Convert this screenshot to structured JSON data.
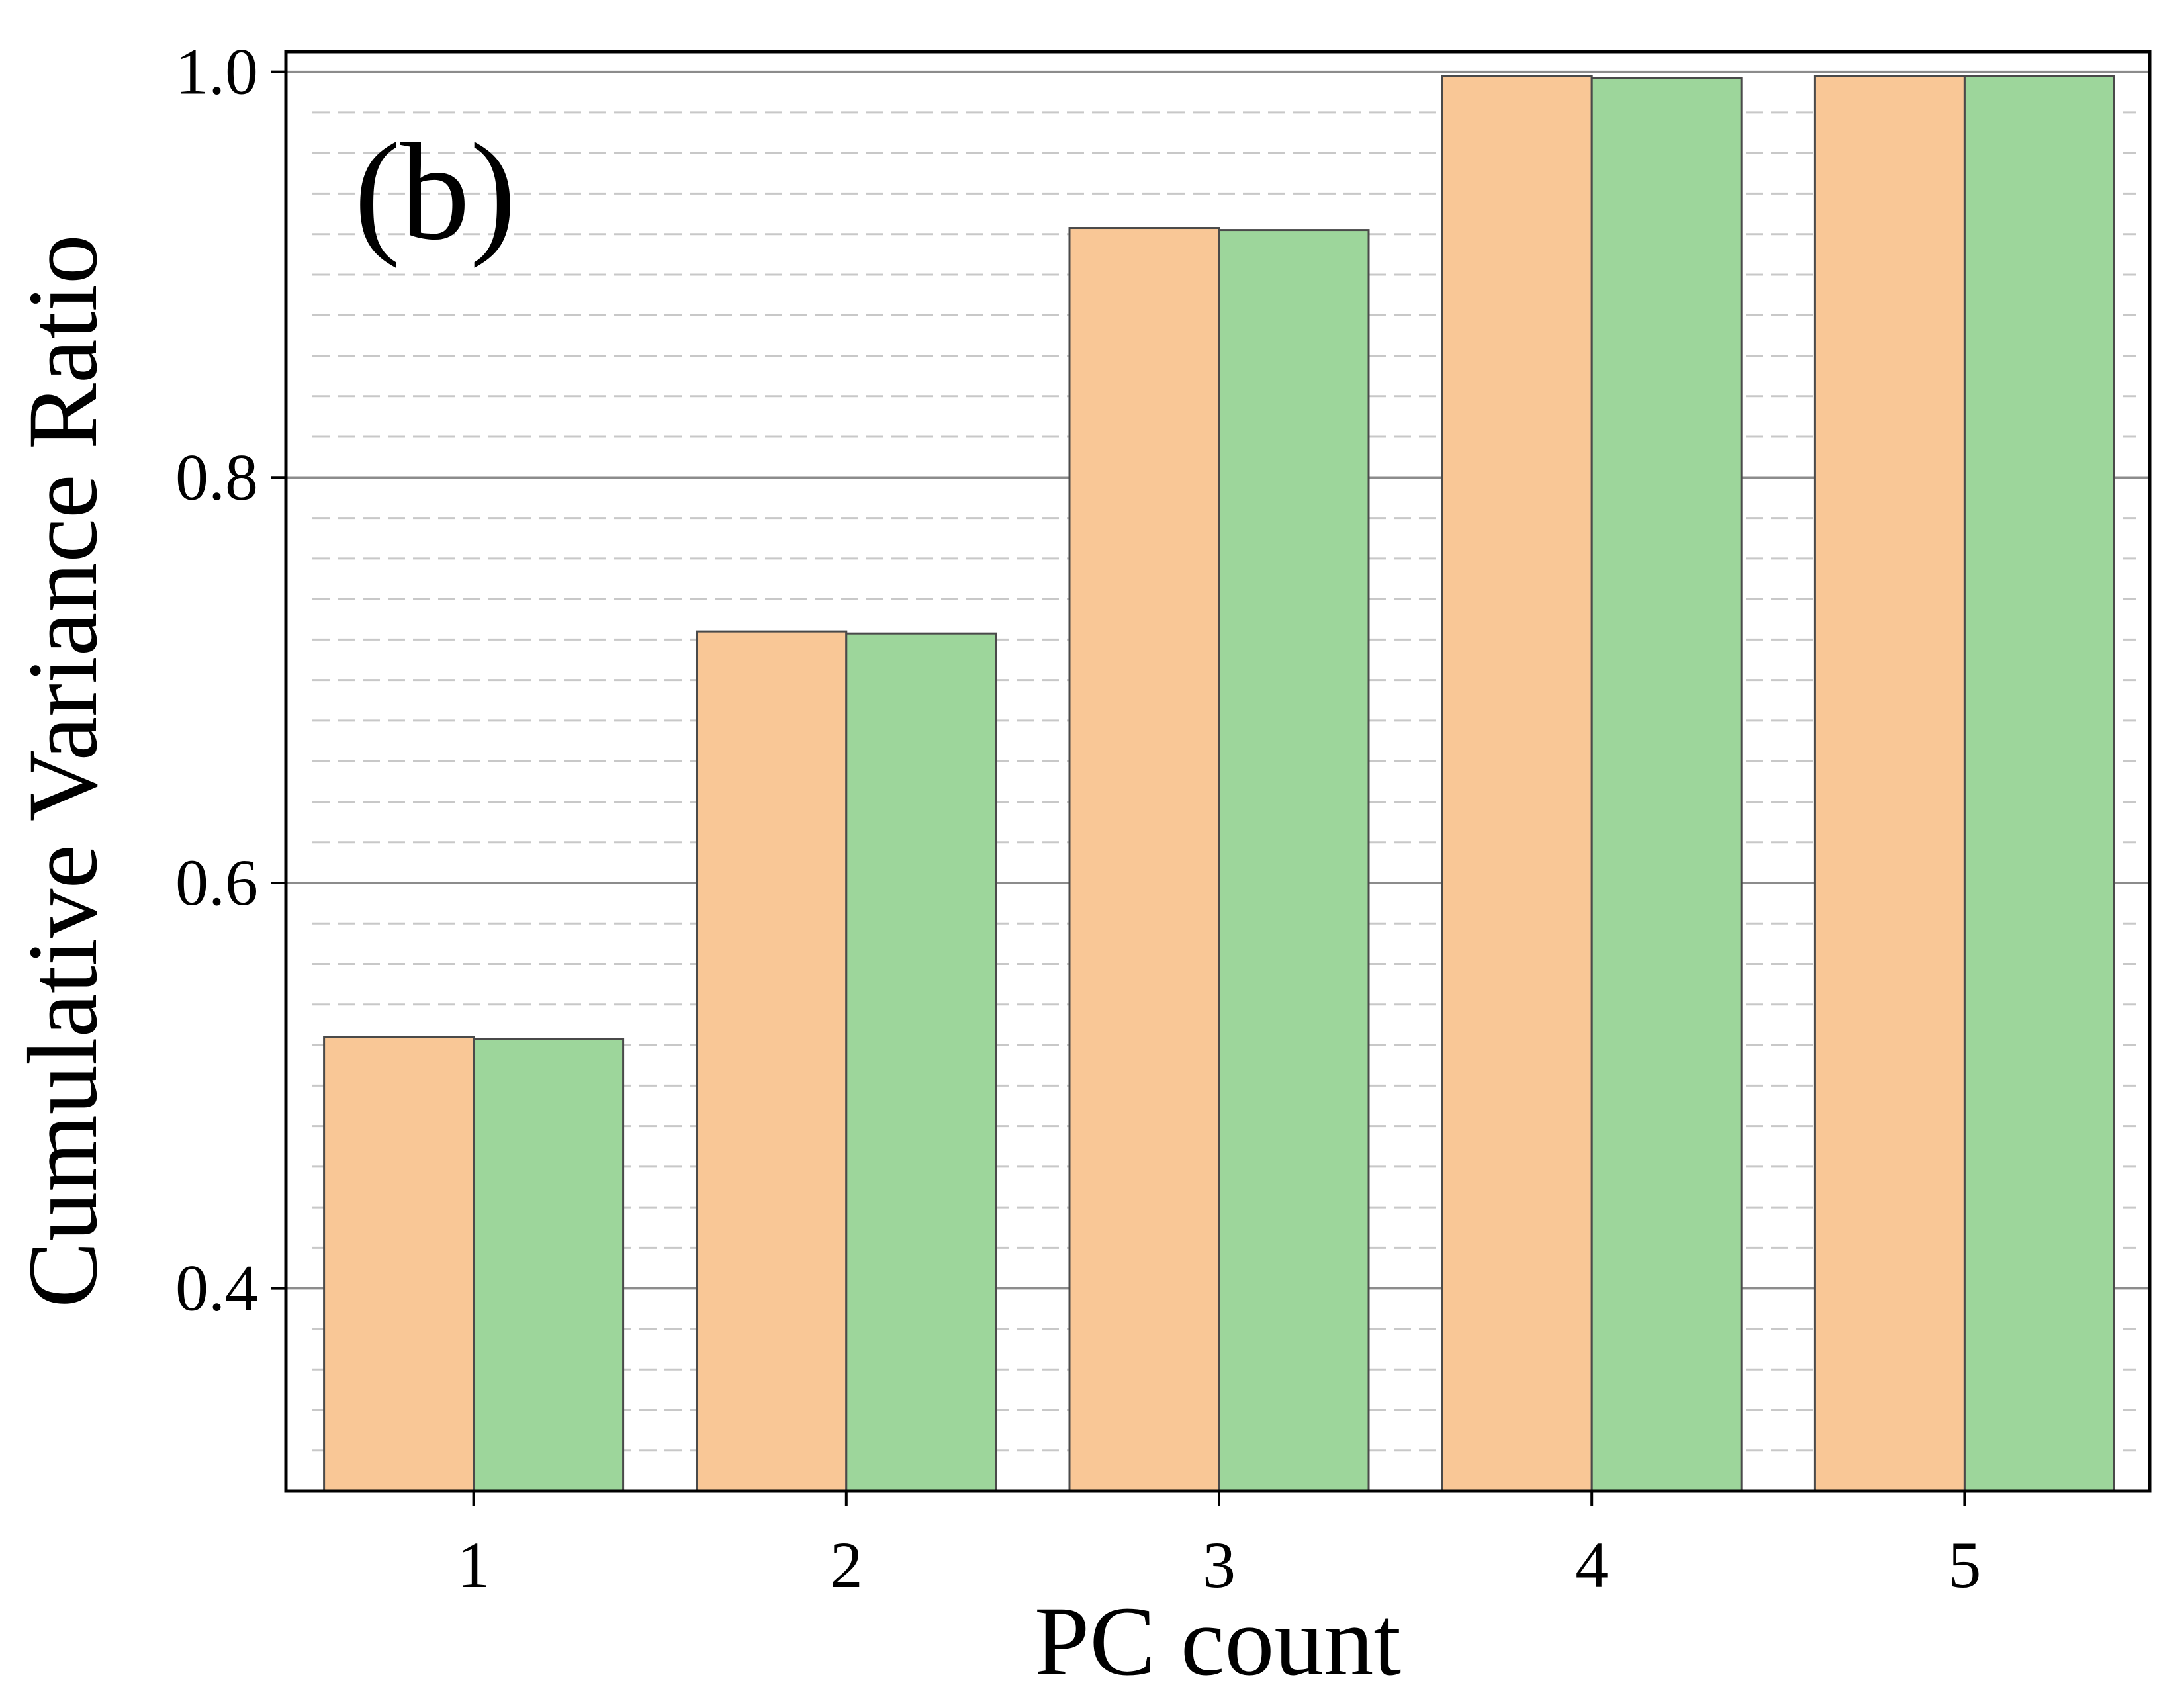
{
  "chart_data": {
    "type": "bar",
    "panel_label": "(b)",
    "title": "",
    "xlabel": "PC count",
    "ylabel": "Cumulative Variance Ratio",
    "categories": [
      "1",
      "2",
      "3",
      "4",
      "5"
    ],
    "series": [
      {
        "values": [
          0.524,
          0.724,
          0.923,
          0.998,
          0.998
        ],
        "color": "#f9c796"
      },
      {
        "values": [
          0.523,
          0.723,
          0.922,
          0.997,
          0.998
        ],
        "color": "#9dd69b"
      }
    ],
    "ylim": [
      0.3,
      1.01
    ],
    "y_ticks": [
      0.4,
      0.6,
      0.8,
      1.0
    ],
    "y_tick_labels": [
      "0.4",
      "0.6",
      "0.8",
      "1.0"
    ],
    "minor_grid_step": 0.02,
    "grid": true,
    "legend": "none",
    "colors": {
      "bar_edge": "#4a4a4a",
      "major_grid": "#8c8c8c",
      "minor_grid": "#c8c8c8",
      "frame": "#000000"
    }
  }
}
